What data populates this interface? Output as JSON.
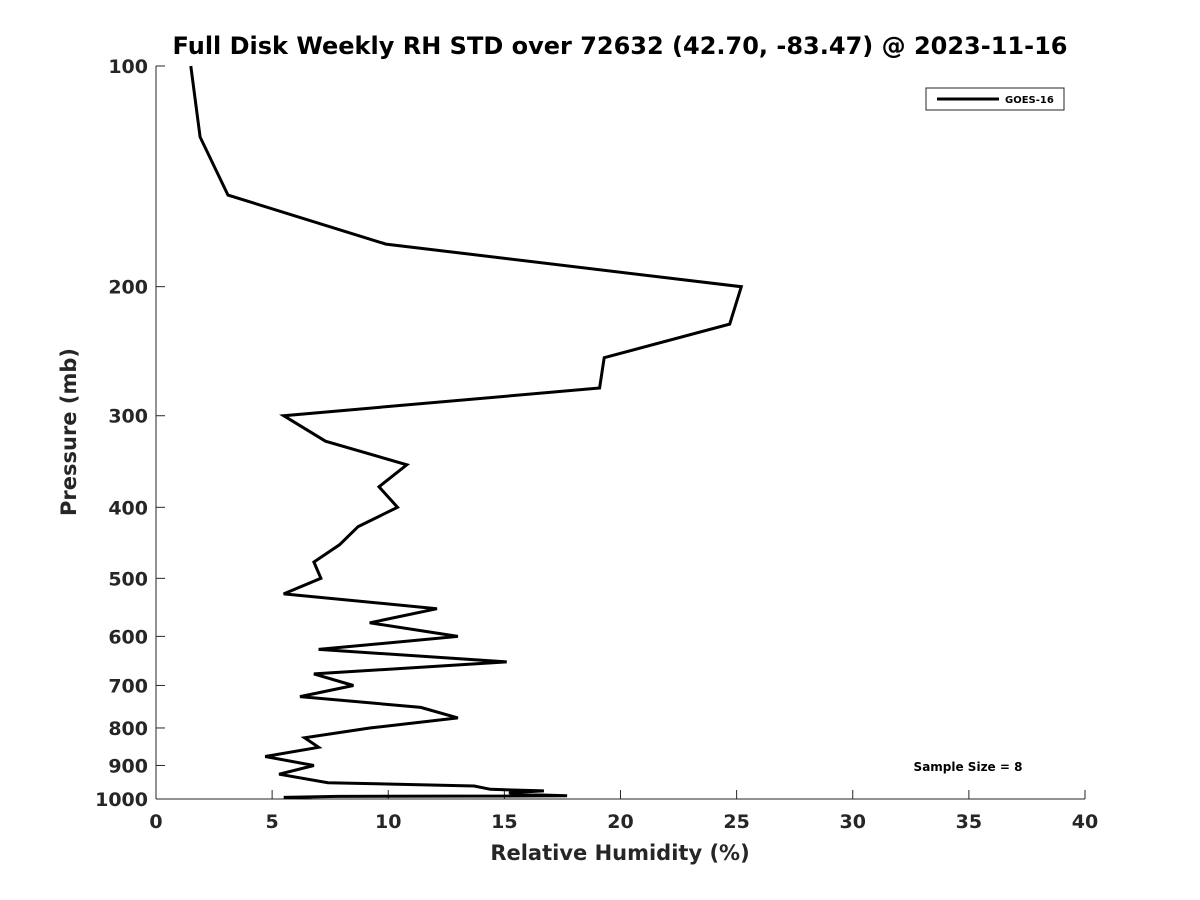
{
  "chart_data": {
    "type": "line",
    "title": "Full Disk Weekly RH STD over 72632 (42.70, -83.47) @ 2023-11-16",
    "xlabel": "Relative Humidity (%)",
    "ylabel": "Pressure (mb)",
    "xlim": [
      0,
      40
    ],
    "ylim": [
      100,
      1000
    ],
    "yscale": "log",
    "y_reversed": true,
    "x_ticks": [
      0,
      5,
      10,
      15,
      20,
      25,
      30,
      35,
      40
    ],
    "y_ticks": [
      100,
      200,
      300,
      400,
      500,
      600,
      700,
      800,
      900,
      1000
    ],
    "grid": false,
    "legend": {
      "position": "top-right",
      "entries": [
        "GOES-16"
      ]
    },
    "annotation": "Sample Size = 8",
    "series": [
      {
        "name": "GOES-16",
        "color": "#000000",
        "points": [
          [
            1.5,
            100
          ],
          [
            1.9,
            125
          ],
          [
            3.1,
            150
          ],
          [
            9.9,
            175
          ],
          [
            25.2,
            200
          ],
          [
            24.7,
            225
          ],
          [
            19.3,
            250
          ],
          [
            19.1,
            275
          ],
          [
            5.5,
            300
          ],
          [
            7.3,
            325
          ],
          [
            10.8,
            350
          ],
          [
            9.6,
            375
          ],
          [
            10.4,
            400
          ],
          [
            8.7,
            425
          ],
          [
            7.9,
            450
          ],
          [
            6.8,
            475
          ],
          [
            7.1,
            500
          ],
          [
            5.5,
            525
          ],
          [
            12.1,
            550
          ],
          [
            9.2,
            575
          ],
          [
            13.0,
            600
          ],
          [
            7.0,
            625
          ],
          [
            15.1,
            650
          ],
          [
            6.8,
            675
          ],
          [
            8.5,
            700
          ],
          [
            6.2,
            725
          ],
          [
            11.4,
            750
          ],
          [
            13.0,
            775
          ],
          [
            9.2,
            800
          ],
          [
            6.4,
            825
          ],
          [
            7.0,
            850
          ],
          [
            4.7,
            875
          ],
          [
            6.8,
            900
          ],
          [
            5.3,
            925
          ],
          [
            7.4,
            950
          ],
          [
            13.7,
            960
          ],
          [
            14.4,
            970
          ],
          [
            16.7,
            975
          ],
          [
            15.2,
            980
          ],
          [
            15.5,
            985
          ],
          [
            17.7,
            990
          ],
          [
            7.8,
            992
          ],
          [
            5.5,
            995
          ],
          [
            6.7,
            997
          ]
        ]
      }
    ]
  }
}
